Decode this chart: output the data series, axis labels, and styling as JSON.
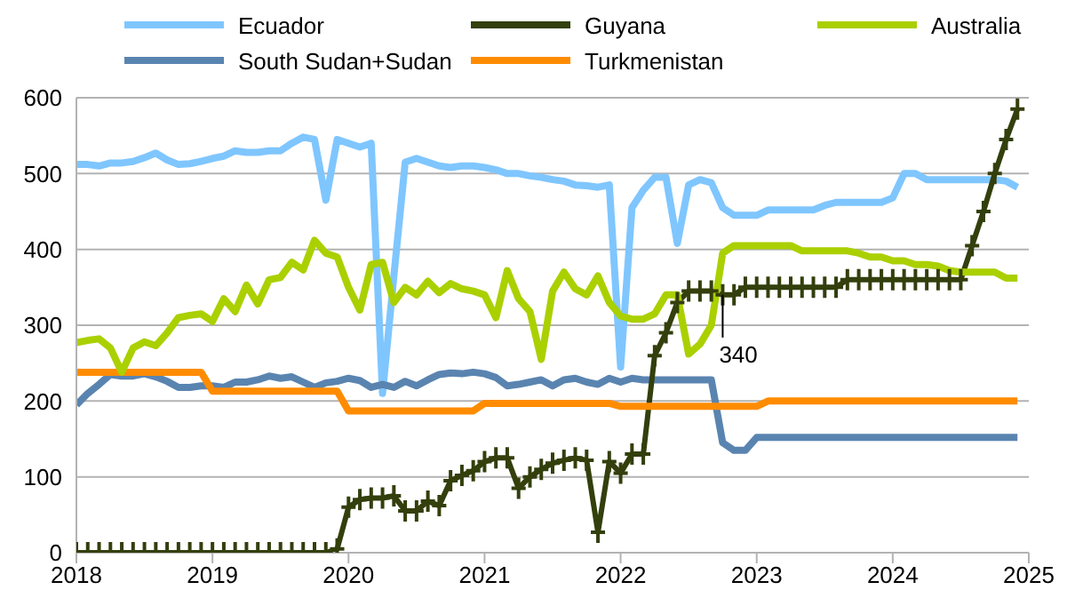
{
  "chart_data": {
    "type": "line",
    "x": [
      "2018-01",
      "2018-02",
      "2018-03",
      "2018-04",
      "2018-05",
      "2018-06",
      "2018-07",
      "2018-08",
      "2018-09",
      "2018-10",
      "2018-11",
      "2018-12",
      "2019-01",
      "2019-02",
      "2019-03",
      "2019-04",
      "2019-05",
      "2019-06",
      "2019-07",
      "2019-08",
      "2019-09",
      "2019-10",
      "2019-11",
      "2019-12",
      "2020-01",
      "2020-02",
      "2020-03",
      "2020-04",
      "2020-05",
      "2020-06",
      "2020-07",
      "2020-08",
      "2020-09",
      "2020-10",
      "2020-11",
      "2020-12",
      "2021-01",
      "2021-02",
      "2021-03",
      "2021-04",
      "2021-05",
      "2021-06",
      "2021-07",
      "2021-08",
      "2021-09",
      "2021-10",
      "2021-11",
      "2021-12",
      "2022-01",
      "2022-02",
      "2022-03",
      "2022-04",
      "2022-05",
      "2022-06",
      "2022-07",
      "2022-08",
      "2022-09",
      "2022-10",
      "2022-11",
      "2022-12",
      "2023-01",
      "2023-02",
      "2023-03",
      "2023-04",
      "2023-05",
      "2023-06",
      "2023-07",
      "2023-08",
      "2023-09",
      "2023-10",
      "2023-11",
      "2023-12",
      "2024-01",
      "2024-02",
      "2024-03",
      "2024-04",
      "2024-05",
      "2024-06",
      "2024-07",
      "2024-08",
      "2024-09",
      "2024-10",
      "2024-11",
      "2024-12"
    ],
    "series": [
      {
        "name": "Ecuador",
        "color": "#7fc6ff",
        "values": [
          512,
          512,
          510,
          514,
          514,
          516,
          521,
          527,
          518,
          512,
          513,
          516,
          520,
          523,
          530,
          528,
          528,
          530,
          530,
          540,
          548,
          545,
          465,
          545,
          540,
          535,
          540,
          210,
          365,
          515,
          520,
          515,
          510,
          508,
          510,
          510,
          508,
          505,
          500,
          500,
          497,
          495,
          492,
          490,
          485,
          484,
          482,
          485,
          245,
          455,
          478,
          495,
          495,
          408,
          485,
          492,
          488,
          455,
          445,
          445,
          445,
          452,
          452,
          452,
          452,
          452,
          458,
          462,
          462,
          462,
          462,
          462,
          468,
          500,
          500,
          492,
          492,
          492,
          492,
          492,
          492,
          492,
          490,
          482
        ]
      },
      {
        "name": "South Sudan+Sudan",
        "color": "#5a84b0",
        "values": [
          195,
          210,
          222,
          235,
          233,
          233,
          236,
          232,
          226,
          218,
          218,
          220,
          220,
          218,
          225,
          225,
          228,
          233,
          230,
          232,
          225,
          218,
          224,
          226,
          230,
          227,
          218,
          222,
          218,
          226,
          220,
          228,
          235,
          237,
          236,
          238,
          236,
          231,
          220,
          222,
          225,
          228,
          220,
          228,
          230,
          225,
          222,
          230,
          225,
          230,
          228,
          228,
          228,
          228,
          228,
          228,
          228,
          145,
          135,
          135,
          152,
          152,
          152,
          152,
          152,
          152,
          152,
          152,
          152,
          152,
          152,
          152,
          152,
          152,
          152,
          152,
          152,
          152,
          152,
          152,
          152,
          152,
          152,
          152
        ]
      },
      {
        "name": "Guyana",
        "color": "#333f0c",
        "marker": "cross",
        "values": [
          0,
          0,
          0,
          0,
          0,
          0,
          0,
          0,
          0,
          0,
          0,
          0,
          0,
          0,
          0,
          0,
          0,
          0,
          0,
          0,
          0,
          0,
          0,
          5,
          60,
          70,
          72,
          72,
          75,
          55,
          55,
          68,
          62,
          95,
          102,
          108,
          120,
          125,
          125,
          85,
          100,
          110,
          118,
          122,
          125,
          122,
          27,
          120,
          105,
          130,
          130,
          260,
          290,
          330,
          345,
          345,
          345,
          340,
          340,
          350,
          350,
          350,
          350,
          350,
          350,
          350,
          350,
          350,
          360,
          360,
          360,
          360,
          360,
          360,
          360,
          360,
          360,
          360,
          360,
          405,
          450,
          500,
          545,
          585
        ]
      },
      {
        "name": "Turkmenistan",
        "color": "#ff8c00",
        "values": [
          238,
          238,
          238,
          238,
          238,
          238,
          238,
          238,
          238,
          238,
          238,
          238,
          213,
          213,
          213,
          213,
          213,
          213,
          213,
          213,
          213,
          213,
          213,
          213,
          187,
          187,
          187,
          187,
          187,
          187,
          187,
          187,
          187,
          187,
          187,
          187,
          197,
          197,
          197,
          197,
          197,
          197,
          197,
          197,
          197,
          197,
          197,
          197,
          193,
          193,
          193,
          193,
          193,
          193,
          193,
          193,
          193,
          193,
          193,
          193,
          193,
          200,
          200,
          200,
          200,
          200,
          200,
          200,
          200,
          200,
          200,
          200,
          200,
          200,
          200,
          200,
          200,
          200,
          200,
          200,
          200,
          200,
          200,
          200
        ]
      },
      {
        "name": "Australia",
        "color": "#aad000",
        "values": [
          277,
          280,
          282,
          270,
          238,
          270,
          278,
          273,
          290,
          310,
          313,
          315,
          305,
          335,
          318,
          353,
          328,
          360,
          363,
          383,
          373,
          412,
          395,
          390,
          350,
          320,
          380,
          383,
          330,
          350,
          340,
          358,
          343,
          355,
          348,
          345,
          340,
          310,
          372,
          335,
          318,
          255,
          345,
          370,
          348,
          340,
          365,
          330,
          312,
          308,
          308,
          315,
          340,
          340,
          262,
          275,
          300,
          395,
          405,
          405,
          405,
          405,
          405,
          405,
          398,
          398,
          398,
          398,
          398,
          395,
          390,
          390,
          385,
          385,
          380,
          380,
          378,
          372,
          370,
          370,
          370,
          370,
          362,
          362
        ]
      }
    ],
    "annotations": [
      {
        "text": "340",
        "x": "2022-10",
        "y": 340
      }
    ],
    "xlim": [
      "2018",
      "2025"
    ],
    "xticks": [
      "2018",
      "2019",
      "2020",
      "2021",
      "2022",
      "2023",
      "2024",
      "2025"
    ],
    "ylim": [
      0,
      600
    ],
    "yticks": [
      0,
      100,
      200,
      300,
      400,
      500,
      600
    ],
    "grid": "y",
    "legend": "top"
  }
}
